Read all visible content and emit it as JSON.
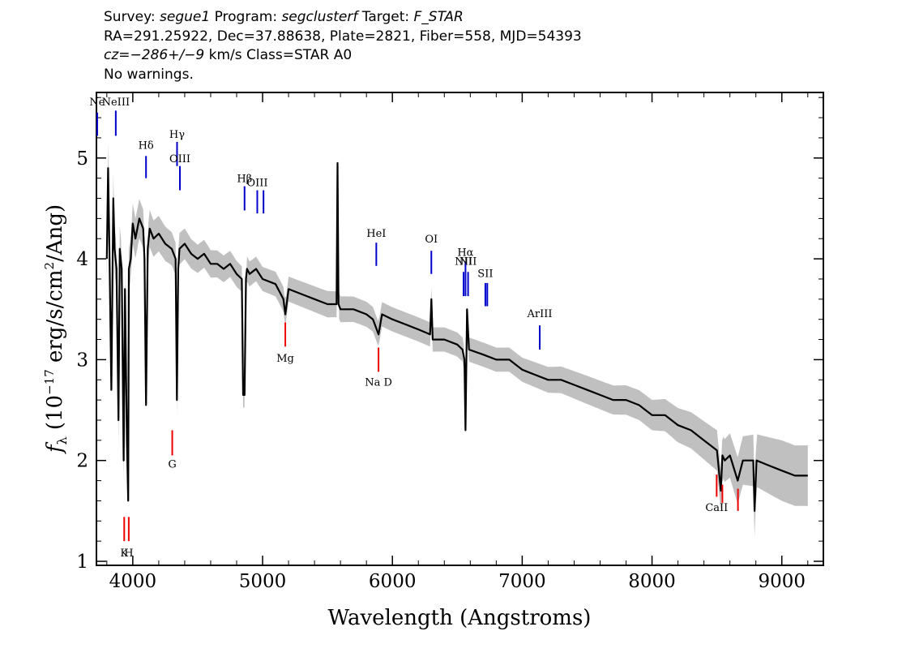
{
  "header": {
    "line1": {
      "survey_label": "Survey: ",
      "survey": "segue1",
      "program_label": " Program: ",
      "program": "segclusterf",
      "target_label": " Target: ",
      "target": "F_STAR"
    },
    "line2": "RA=291.25922, Dec=37.88638, Plate=2821, Fiber=558, MJD=54393",
    "line3": {
      "cz": "cz=−286+/−9",
      "rest": " km/s Class=STAR A0"
    },
    "line4": "No warnings."
  },
  "chart_data": {
    "type": "line",
    "xlabel": "Wavelength (Angstroms)",
    "ylabel_parts": [
      "f",
      "λ",
      " (10",
      "−17",
      " erg/s/cm",
      "2",
      "/Ang)"
    ],
    "xlim": [
      3720,
      9320
    ],
    "ylim": [
      0.96,
      5.65
    ],
    "xticks": [
      4000,
      5000,
      6000,
      7000,
      8000,
      9000
    ],
    "yticks": [
      1,
      2,
      3,
      4,
      5
    ],
    "grid": false,
    "colors": {
      "flux": "#000000",
      "error_band": "#c0c0c0",
      "emission": "#0000cc",
      "absorption": "#ee0000"
    },
    "series": [
      {
        "role": "flux",
        "x": [
          3800,
          3810,
          3820,
          3835,
          3850,
          3860,
          3875,
          3890,
          3900,
          3915,
          3930,
          3940,
          3955,
          3965,
          3970,
          3985,
          4000,
          4020,
          4050,
          4080,
          4090,
          4102,
          4115,
          4130,
          4160,
          4200,
          4250,
          4300,
          4330,
          4340,
          4350,
          4360,
          4400,
          4450,
          4500,
          4550,
          4600,
          4650,
          4700,
          4750,
          4800,
          4840,
          4850,
          4861,
          4872,
          4880,
          4900,
          4950,
          5000,
          5100,
          5160,
          5175,
          5200,
          5300,
          5400,
          5500,
          5570,
          5577,
          5585,
          5600,
          5700,
          5800,
          5850,
          5893,
          5920,
          6000,
          6100,
          6200,
          6290,
          6300,
          6310,
          6400,
          6500,
          6540,
          6555,
          6563,
          6575,
          6590,
          6700,
          6800,
          6900,
          7000,
          7100,
          7200,
          7300,
          7400,
          7500,
          7600,
          7700,
          7800,
          7900,
          8000,
          8100,
          8200,
          8300,
          8400,
          8500,
          8530,
          8542,
          8560,
          8600,
          8660,
          8700,
          8780,
          8790,
          8805,
          8900,
          9000,
          9100,
          9200
        ],
        "y": [
          4.0,
          4.9,
          4.1,
          2.7,
          4.6,
          4.1,
          3.9,
          2.4,
          4.1,
          3.9,
          2.0,
          3.7,
          2.2,
          1.6,
          3.9,
          4.0,
          4.35,
          4.2,
          4.4,
          4.3,
          4.0,
          2.55,
          4.1,
          4.3,
          4.2,
          4.25,
          4.15,
          4.1,
          4.0,
          2.6,
          3.9,
          4.1,
          4.15,
          4.05,
          4.0,
          4.05,
          3.95,
          3.95,
          3.9,
          3.95,
          3.85,
          3.8,
          2.65,
          2.65,
          3.8,
          3.9,
          3.85,
          3.9,
          3.8,
          3.75,
          3.6,
          3.45,
          3.7,
          3.65,
          3.6,
          3.55,
          3.55,
          4.95,
          3.55,
          3.5,
          3.5,
          3.45,
          3.4,
          3.25,
          3.45,
          3.4,
          3.35,
          3.3,
          3.25,
          3.6,
          3.2,
          3.2,
          3.15,
          3.1,
          3.0,
          2.3,
          3.5,
          3.1,
          3.05,
          3.0,
          3.0,
          2.9,
          2.85,
          2.8,
          2.8,
          2.75,
          2.7,
          2.65,
          2.6,
          2.6,
          2.55,
          2.45,
          2.45,
          2.35,
          2.3,
          2.2,
          2.1,
          1.7,
          2.05,
          2.0,
          2.05,
          1.8,
          2.0,
          2.0,
          1.5,
          2.0,
          1.95,
          1.9,
          1.85,
          1.85
        ]
      },
      {
        "role": "error_band",
        "x": [
          3800,
          4000,
          4500,
          5000,
          5500,
          6000,
          6500,
          7000,
          7500,
          8000,
          8500,
          9000,
          9200
        ],
        "half_width": [
          0.25,
          0.2,
          0.14,
          0.12,
          0.13,
          0.12,
          0.12,
          0.12,
          0.14,
          0.15,
          0.2,
          0.3,
          0.3
        ]
      }
    ],
    "emission_lines": [
      {
        "label": "Ne",
        "x": 3726,
        "y0": 5.22,
        "y1": 5.45,
        "label_y": 5.52
      },
      {
        "label": "NeIII",
        "x": 3869,
        "y0": 5.22,
        "y1": 5.47,
        "label_y": 5.52
      },
      {
        "label": "Hδ",
        "x": 4102,
        "y0": 4.8,
        "y1": 5.02,
        "label_y": 5.09
      },
      {
        "label": "Hγ",
        "x": 4341,
        "y0": 4.92,
        "y1": 5.16,
        "label_y": 5.2
      },
      {
        "label": "OIII",
        "x": 4363,
        "y0": 4.68,
        "y1": 4.92,
        "label_y": 4.96
      },
      {
        "label": "Hβ",
        "x": 4861,
        "y0": 4.48,
        "y1": 4.72,
        "label_y": 4.76
      },
      {
        "label": "OIII",
        "x": 4959,
        "y0": 4.45,
        "y1": 4.68,
        "label_y": 4.72
      },
      {
        "label": "",
        "x": 5007,
        "y0": 4.45,
        "y1": 4.68,
        "label_y": 4.72
      },
      {
        "label": "HeI",
        "x": 5876,
        "y0": 3.93,
        "y1": 4.16,
        "label_y": 4.22
      },
      {
        "label": "OI",
        "x": 6300,
        "y0": 3.85,
        "y1": 4.08,
        "label_y": 4.16
      },
      {
        "label": "NII",
        "x": 6548,
        "y0": 3.63,
        "y1": 3.87,
        "label_y": 3.94
      },
      {
        "label": "Hα",
        "x": 6563,
        "y0": 3.63,
        "y1": 3.97,
        "label_y": 4.03
      },
      {
        "label": "NII",
        "x": 6583,
        "y0": 3.63,
        "y1": 3.87,
        "label_y": 3.94
      },
      {
        "label": "SII",
        "x": 6716,
        "y0": 3.53,
        "y1": 3.76,
        "label_y": 3.82
      },
      {
        "label": "",
        "x": 6731,
        "y0": 3.53,
        "y1": 3.76,
        "label_y": 3.82
      },
      {
        "label": "ArIII",
        "x": 7135,
        "y0": 3.1,
        "y1": 3.34,
        "label_y": 3.42
      }
    ],
    "absorption_lines": [
      {
        "label": "Mg",
        "x": 5175,
        "y0": 3.13,
        "y1": 3.37,
        "label_y": 2.98
      },
      {
        "label": "G",
        "x": 4304,
        "y0": 2.05,
        "y1": 2.3,
        "label_y": 1.93
      },
      {
        "label": "Na D",
        "x": 5893,
        "y0": 2.88,
        "y1": 3.12,
        "label_y": 2.74
      },
      {
        "label": "K",
        "x": 3934,
        "y0": 1.2,
        "y1": 1.44,
        "label_y": 1.05
      },
      {
        "label": "H",
        "x": 3969,
        "y0": 1.2,
        "y1": 1.44,
        "label_y": 1.05
      },
      {
        "label": "CaII",
        "x": 8498,
        "y0": 1.64,
        "y1": 1.86,
        "label_y": 1.5
      },
      {
        "label": "",
        "x": 8542,
        "y0": 1.58,
        "y1": 1.76,
        "label_y": 1.5
      },
      {
        "label": "",
        "x": 8662,
        "y0": 1.5,
        "y1": 1.72,
        "label_y": 1.5
      }
    ]
  }
}
